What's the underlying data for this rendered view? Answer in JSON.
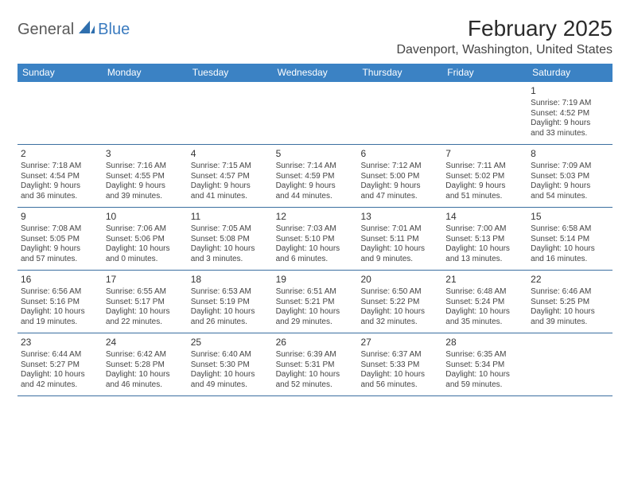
{
  "logo": {
    "word1": "General",
    "word2": "Blue",
    "icon_color": "#2f6fae"
  },
  "header": {
    "title": "February 2025",
    "location": "Davenport, Washington, United States"
  },
  "colors": {
    "header_bg": "#3b82c4",
    "header_text": "#ffffff",
    "rule": "#3b6fa0",
    "body_text": "#444444"
  },
  "weekdays": [
    "Sunday",
    "Monday",
    "Tuesday",
    "Wednesday",
    "Thursday",
    "Friday",
    "Saturday"
  ],
  "calendar": {
    "first_weekday_index": 6,
    "days": [
      {
        "n": 1,
        "sunrise": "7:19 AM",
        "sunset": "4:52 PM",
        "daylight_h": 9,
        "daylight_m": 33
      },
      {
        "n": 2,
        "sunrise": "7:18 AM",
        "sunset": "4:54 PM",
        "daylight_h": 9,
        "daylight_m": 36
      },
      {
        "n": 3,
        "sunrise": "7:16 AM",
        "sunset": "4:55 PM",
        "daylight_h": 9,
        "daylight_m": 39
      },
      {
        "n": 4,
        "sunrise": "7:15 AM",
        "sunset": "4:57 PM",
        "daylight_h": 9,
        "daylight_m": 41
      },
      {
        "n": 5,
        "sunrise": "7:14 AM",
        "sunset": "4:59 PM",
        "daylight_h": 9,
        "daylight_m": 44
      },
      {
        "n": 6,
        "sunrise": "7:12 AM",
        "sunset": "5:00 PM",
        "daylight_h": 9,
        "daylight_m": 47
      },
      {
        "n": 7,
        "sunrise": "7:11 AM",
        "sunset": "5:02 PM",
        "daylight_h": 9,
        "daylight_m": 51
      },
      {
        "n": 8,
        "sunrise": "7:09 AM",
        "sunset": "5:03 PM",
        "daylight_h": 9,
        "daylight_m": 54
      },
      {
        "n": 9,
        "sunrise": "7:08 AM",
        "sunset": "5:05 PM",
        "daylight_h": 9,
        "daylight_m": 57
      },
      {
        "n": 10,
        "sunrise": "7:06 AM",
        "sunset": "5:06 PM",
        "daylight_h": 10,
        "daylight_m": 0
      },
      {
        "n": 11,
        "sunrise": "7:05 AM",
        "sunset": "5:08 PM",
        "daylight_h": 10,
        "daylight_m": 3
      },
      {
        "n": 12,
        "sunrise": "7:03 AM",
        "sunset": "5:10 PM",
        "daylight_h": 10,
        "daylight_m": 6
      },
      {
        "n": 13,
        "sunrise": "7:01 AM",
        "sunset": "5:11 PM",
        "daylight_h": 10,
        "daylight_m": 9
      },
      {
        "n": 14,
        "sunrise": "7:00 AM",
        "sunset": "5:13 PM",
        "daylight_h": 10,
        "daylight_m": 13
      },
      {
        "n": 15,
        "sunrise": "6:58 AM",
        "sunset": "5:14 PM",
        "daylight_h": 10,
        "daylight_m": 16
      },
      {
        "n": 16,
        "sunrise": "6:56 AM",
        "sunset": "5:16 PM",
        "daylight_h": 10,
        "daylight_m": 19
      },
      {
        "n": 17,
        "sunrise": "6:55 AM",
        "sunset": "5:17 PM",
        "daylight_h": 10,
        "daylight_m": 22
      },
      {
        "n": 18,
        "sunrise": "6:53 AM",
        "sunset": "5:19 PM",
        "daylight_h": 10,
        "daylight_m": 26
      },
      {
        "n": 19,
        "sunrise": "6:51 AM",
        "sunset": "5:21 PM",
        "daylight_h": 10,
        "daylight_m": 29
      },
      {
        "n": 20,
        "sunrise": "6:50 AM",
        "sunset": "5:22 PM",
        "daylight_h": 10,
        "daylight_m": 32
      },
      {
        "n": 21,
        "sunrise": "6:48 AM",
        "sunset": "5:24 PM",
        "daylight_h": 10,
        "daylight_m": 35
      },
      {
        "n": 22,
        "sunrise": "6:46 AM",
        "sunset": "5:25 PM",
        "daylight_h": 10,
        "daylight_m": 39
      },
      {
        "n": 23,
        "sunrise": "6:44 AM",
        "sunset": "5:27 PM",
        "daylight_h": 10,
        "daylight_m": 42
      },
      {
        "n": 24,
        "sunrise": "6:42 AM",
        "sunset": "5:28 PM",
        "daylight_h": 10,
        "daylight_m": 46
      },
      {
        "n": 25,
        "sunrise": "6:40 AM",
        "sunset": "5:30 PM",
        "daylight_h": 10,
        "daylight_m": 49
      },
      {
        "n": 26,
        "sunrise": "6:39 AM",
        "sunset": "5:31 PM",
        "daylight_h": 10,
        "daylight_m": 52
      },
      {
        "n": 27,
        "sunrise": "6:37 AM",
        "sunset": "5:33 PM",
        "daylight_h": 10,
        "daylight_m": 56
      },
      {
        "n": 28,
        "sunrise": "6:35 AM",
        "sunset": "5:34 PM",
        "daylight_h": 10,
        "daylight_m": 59
      }
    ]
  },
  "labels": {
    "sunrise_prefix": "Sunrise: ",
    "sunset_prefix": "Sunset: ",
    "daylight_prefix": "Daylight: ",
    "hours_word": " hours",
    "and_word": "and ",
    "minutes_word": " minutes."
  }
}
